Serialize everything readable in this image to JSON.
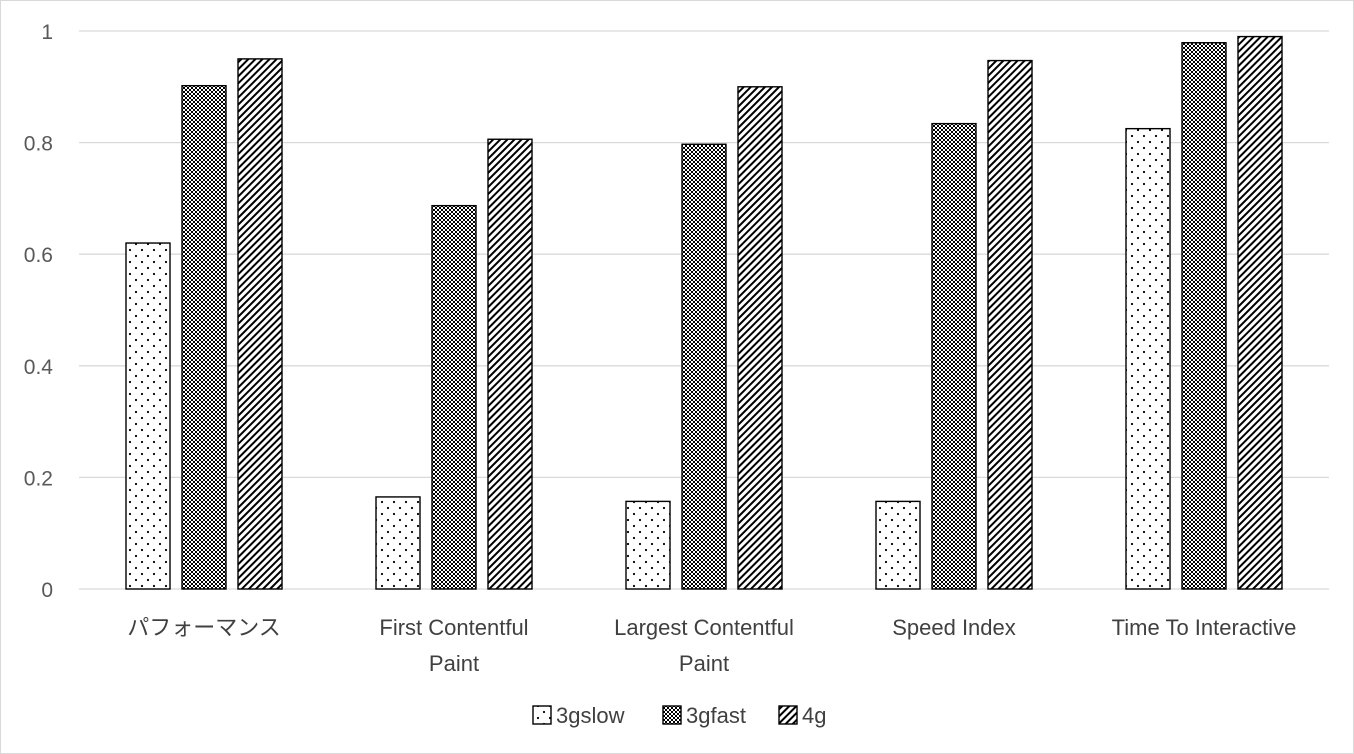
{
  "chart_data": {
    "type": "bar",
    "title": "",
    "xlabel": "",
    "ylabel": "",
    "categories": [
      [
        "パフォーマンス"
      ],
      [
        "First Contentful",
        "Paint"
      ],
      [
        "Largest Contentful",
        "Paint"
      ],
      [
        "Speed Index"
      ],
      [
        "Time To Interactive"
      ]
    ],
    "series": [
      {
        "name": "3gslow",
        "pattern": "dots",
        "values": [
          0.62,
          0.165,
          0.157,
          0.157,
          0.825
        ]
      },
      {
        "name": "3gfast",
        "pattern": "checker",
        "values": [
          0.902,
          0.687,
          0.797,
          0.834,
          0.979
        ]
      },
      {
        "name": "4g",
        "pattern": "diagonal",
        "values": [
          0.95,
          0.806,
          0.9,
          0.947,
          0.99
        ]
      }
    ],
    "ylim": [
      0,
      1
    ],
    "yticks": [
      0,
      0.2,
      0.4,
      0.6,
      0.8,
      1
    ],
    "ytick_labels": [
      "0",
      "0.2",
      "0.4",
      "0.6",
      "0.8",
      "1"
    ],
    "grid": true,
    "legend_position": "bottom",
    "colors": {
      "bar_stroke": "#000000",
      "bar_fill": "#ffffff",
      "grid": "#d9d9d9",
      "text": "#595959"
    }
  }
}
